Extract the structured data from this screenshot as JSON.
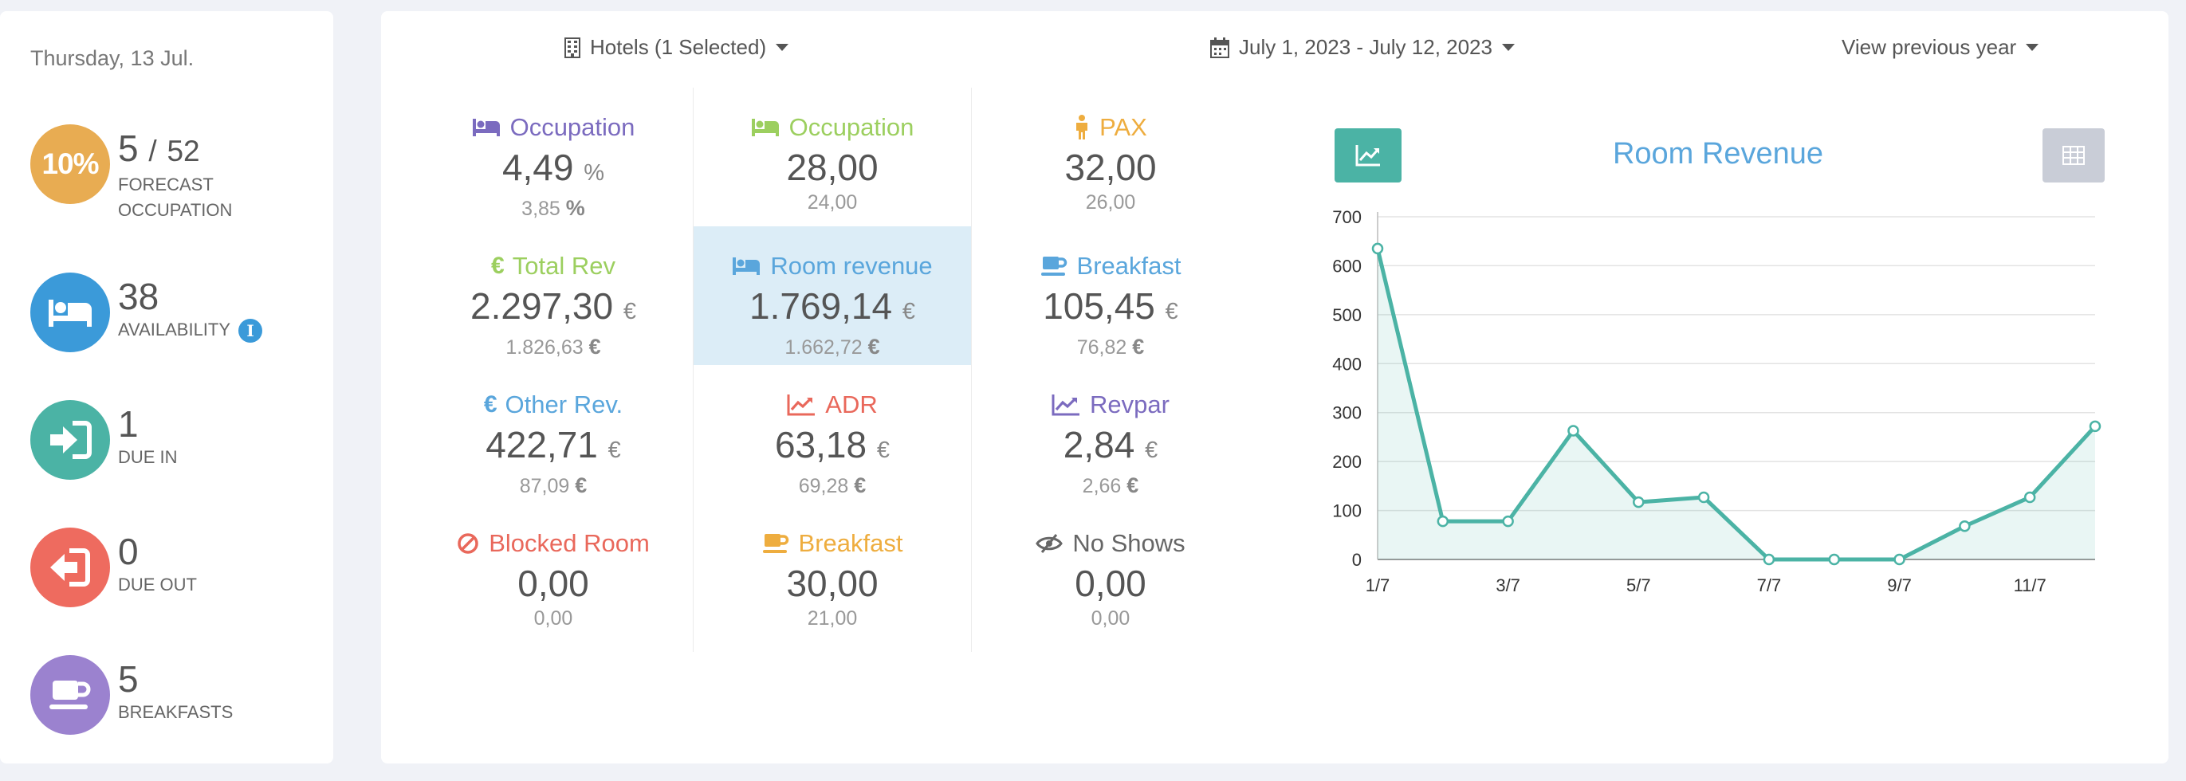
{
  "sidebar": {
    "date": "Thursday, 13 Jul.",
    "occupancy": {
      "percent": "10%",
      "current": "5",
      "separator": "/",
      "total": "52",
      "label_line1": "FORECAST",
      "label_line2": "OCCUPATION",
      "color": "#e8ac52"
    },
    "availability": {
      "value": "38",
      "label": "AVAILABILITY",
      "info": "i",
      "color": "#3b9ad9"
    },
    "due_in": {
      "value": "1",
      "label": "DUE IN",
      "color": "#4bb3a5"
    },
    "due_out": {
      "value": "0",
      "label": "DUE OUT",
      "color": "#ee6b5f"
    },
    "breakfasts": {
      "value": "5",
      "label": "BREAKFASTS",
      "color": "#9b82cf"
    }
  },
  "filters": {
    "hotels": "Hotels (1 Selected)",
    "date_range": "July 1, 2023 - July 12, 2023",
    "compare": "View previous year"
  },
  "metrics": {
    "col1": [
      {
        "title": "Occupation",
        "icon": "bed-icon",
        "color": "#7b6bbf",
        "value": "4,49",
        "unit": "%",
        "prev": "3,85",
        "prev_unit": "%"
      },
      {
        "title": "Total Rev",
        "icon": "euro-icon",
        "color": "#9ccf5f",
        "value": "2.297,30",
        "unit": "€",
        "prev": "1.826,63",
        "prev_unit": "€"
      },
      {
        "title": "Other Rev.",
        "icon": "euro-icon",
        "color": "#5aa6dc",
        "value": "422,71",
        "unit": "€",
        "prev": "87,09",
        "prev_unit": "€"
      },
      {
        "title": "Blocked Room",
        "icon": "ban-icon",
        "color": "#e9685b",
        "value": "0,00",
        "unit": "",
        "prev": "0,00",
        "prev_unit": ""
      }
    ],
    "col2": [
      {
        "title": "Occupation",
        "icon": "bed-icon",
        "color": "#9ccf5f",
        "value": "28,00",
        "unit": "",
        "prev": "24,00",
        "prev_unit": ""
      },
      {
        "title": "Room revenue",
        "icon": "bed-icon",
        "color": "#5aa6dc",
        "value": "1.769,14",
        "unit": "€",
        "prev": "1.662,72",
        "prev_unit": "€"
      },
      {
        "title": "ADR",
        "icon": "line-chart-icon",
        "color": "#e9685b",
        "value": "63,18",
        "unit": "€",
        "prev": "69,28",
        "prev_unit": "€"
      },
      {
        "title": "Breakfast",
        "icon": "coffee-icon",
        "color": "#eead3f",
        "value": "30,00",
        "unit": "",
        "prev": "21,00",
        "prev_unit": ""
      }
    ],
    "col3": [
      {
        "title": "PAX",
        "icon": "person-icon",
        "color": "#eead3f",
        "value": "32,00",
        "unit": "",
        "prev": "26,00",
        "prev_unit": ""
      },
      {
        "title": "Breakfast",
        "icon": "coffee-icon",
        "color": "#5aa6dc",
        "value": "105,45",
        "unit": "€",
        "prev": "76,82",
        "prev_unit": "€"
      },
      {
        "title": "Revpar",
        "icon": "line-chart-icon",
        "color": "#7b6bbf",
        "value": "2,84",
        "unit": "€",
        "prev": "2,66",
        "prev_unit": "€"
      },
      {
        "title": "No Shows",
        "icon": "eye-slash-icon",
        "color": "#666666",
        "value": "0,00",
        "unit": "",
        "prev": "0,00",
        "prev_unit": ""
      }
    ]
  },
  "chart_data": {
    "type": "area",
    "title": "Room Revenue",
    "x": [
      "1/7",
      "2/7",
      "3/7",
      "4/7",
      "5/7",
      "6/7",
      "7/7",
      "8/7",
      "9/7",
      "10/7",
      "11/7",
      "12/7"
    ],
    "x_tick_labels": [
      "1/7",
      "3/7",
      "5/7",
      "7/7",
      "9/7",
      "11/7"
    ],
    "values": [
      635,
      78,
      78,
      263,
      117,
      127,
      0,
      0,
      0,
      68,
      127,
      272
    ],
    "ylim": [
      0,
      700
    ],
    "yticks": [
      0,
      100,
      200,
      300,
      400,
      500,
      600,
      700
    ],
    "grid": true,
    "color": "#4bb3a5"
  }
}
